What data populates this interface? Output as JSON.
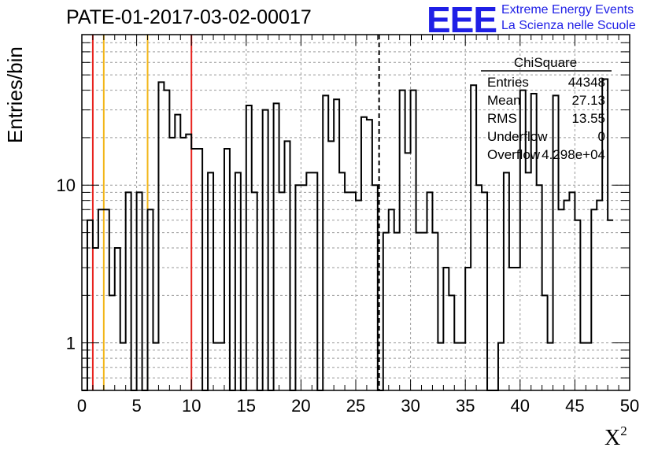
{
  "header": {
    "title": "PATE-01-2017-03-02-00017",
    "logo_text": "EEE",
    "logo_line1": "Extreme Energy Events",
    "logo_line2": "La Scienza nelle Scuole"
  },
  "stats": {
    "name": "ChiSquare",
    "rows": [
      {
        "label": "Entries",
        "value": "44348"
      },
      {
        "label": "Mean",
        "value": "27.13"
      },
      {
        "label": "RMS",
        "value": "13.55"
      },
      {
        "label": "Underflow",
        "value": "0"
      },
      {
        "label": "Overflow",
        "value": "4.298e+04"
      }
    ]
  },
  "colors": {
    "histogram": "#000000",
    "red_lines": "#e8231e",
    "yellow_lines": "#f2b619",
    "mean_line": "#000000",
    "grid": "#9a9a9a",
    "logo": "#1f1fe6"
  },
  "chart_data": {
    "type": "histogram",
    "title": "PATE-01-2017-03-02-00017",
    "xlabel": "X",
    "xlabel_superscript": "2",
    "ylabel": "Entries/bin",
    "xlim": [
      0,
      50
    ],
    "ylim": [
      0.5,
      90
    ],
    "yscale": "log",
    "grid": true,
    "bin_width": 0.5,
    "xticks": [
      0,
      5,
      10,
      15,
      20,
      25,
      30,
      35,
      40,
      45,
      50
    ],
    "xtick_labels": [
      "0",
      "5",
      "10",
      "15",
      "20",
      "25",
      "30",
      "35",
      "40",
      "45",
      "50"
    ],
    "yticks": [
      1,
      10
    ],
    "ytick_labels": [
      "1",
      "10"
    ],
    "values": [
      0,
      6,
      4,
      7,
      7,
      2,
      4,
      1,
      9,
      0,
      9,
      0,
      7,
      1,
      45,
      40,
      20,
      28,
      20,
      21,
      17,
      17,
      0,
      12,
      1,
      1,
      17,
      0,
      12,
      0,
      32,
      9,
      0,
      30,
      0,
      33,
      9,
      19,
      0,
      10,
      10,
      12,
      12,
      0,
      37,
      19,
      35,
      12,
      9,
      9,
      8,
      27,
      26,
      10,
      0,
      5,
      7,
      5,
      40,
      16,
      40,
      5,
      5,
      9,
      5,
      1,
      3,
      2,
      1,
      1,
      3,
      43,
      10,
      9,
      0,
      0,
      1,
      12,
      3,
      3,
      40,
      12,
      38,
      10,
      2,
      1,
      37,
      7,
      8,
      9,
      6,
      1,
      1,
      7,
      8,
      47,
      6
    ],
    "vertical_lines": [
      {
        "x": 1,
        "color": "red"
      },
      {
        "x": 2,
        "color": "yellow"
      },
      {
        "x": 6,
        "color": "yellow"
      },
      {
        "x": 10,
        "color": "red"
      },
      {
        "x": 27.13,
        "color": "black",
        "style": "dashed"
      }
    ]
  }
}
